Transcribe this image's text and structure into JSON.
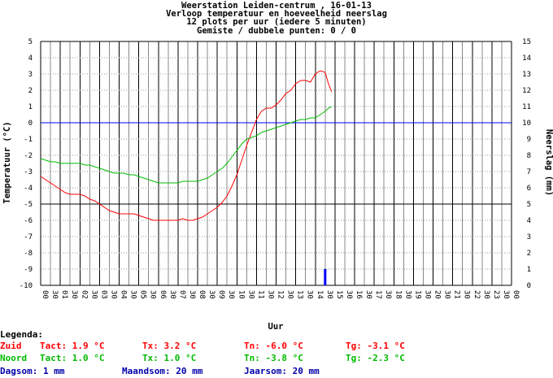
{
  "chart_data": {
    "type": "line",
    "title_lines": [
      "Weerstation Leiden-centrum , 16-01-13",
      "Verloop temperatuur en hoeveelheid neerslag",
      "12 plots per uur (iedere 5 minuten)",
      "Gemiste / dubbele punten: 0 / 0"
    ],
    "xlabel": "Uur",
    "ylabel_left": "Temperatuur (°C)",
    "ylabel_right": "Neerslag (mm)",
    "ylim_left": [
      -10,
      5
    ],
    "ylim_right": [
      0,
      15
    ],
    "xlim": [
      0,
      24
    ],
    "y_ticks_left": [
      "5",
      "4",
      "3",
      "2",
      "1",
      "0",
      "-1",
      "-2",
      "-3",
      "-4",
      "-5",
      "-6",
      "-7",
      "-8",
      "-9",
      "-10"
    ],
    "y_ticks_right": [
      "15",
      "14",
      "13",
      "12",
      "11",
      "10",
      "9",
      "8",
      "7",
      "6",
      "5",
      "4",
      "3",
      "2",
      "1",
      "0"
    ],
    "x_hour_labels": [
      "00",
      "01",
      "02",
      "03",
      "04",
      "05",
      "06",
      "07",
      "08",
      "09",
      "10",
      "11",
      "12",
      "13",
      "14",
      "15",
      "16",
      "17",
      "18",
      "19",
      "20",
      "21",
      "22",
      "23",
      "00"
    ],
    "x_half_label": "30",
    "grid": true,
    "series": [
      {
        "name": "Zuid",
        "color": "#ff0000",
        "x": [
          0.0,
          0.25,
          0.5,
          0.75,
          1.0,
          1.25,
          1.5,
          1.75,
          2.0,
          2.25,
          2.5,
          2.75,
          3.0,
          3.25,
          3.5,
          3.75,
          4.0,
          4.25,
          4.5,
          4.75,
          5.0,
          5.25,
          5.5,
          5.75,
          6.0,
          6.25,
          6.5,
          6.75,
          7.0,
          7.25,
          7.5,
          7.75,
          8.0,
          8.25,
          8.5,
          8.75,
          9.0,
          9.25,
          9.5,
          9.75,
          10.0,
          10.25,
          10.5,
          10.75,
          11.0,
          11.25,
          11.5,
          11.75,
          12.0,
          12.25,
          12.5,
          12.75,
          13.0,
          13.25,
          13.5,
          13.75,
          14.0,
          14.25,
          14.5,
          14.67,
          14.83
        ],
        "y": [
          -3.3,
          -3.5,
          -3.7,
          -3.9,
          -4.1,
          -4.3,
          -4.4,
          -4.4,
          -4.4,
          -4.5,
          -4.7,
          -4.8,
          -5.0,
          -5.2,
          -5.4,
          -5.5,
          -5.6,
          -5.6,
          -5.6,
          -5.6,
          -5.7,
          -5.8,
          -5.9,
          -6.0,
          -6.0,
          -6.0,
          -6.0,
          -6.0,
          -6.0,
          -5.9,
          -6.0,
          -6.0,
          -5.9,
          -5.8,
          -5.6,
          -5.4,
          -5.2,
          -4.9,
          -4.5,
          -3.9,
          -3.2,
          -2.3,
          -1.4,
          -0.6,
          0.2,
          0.7,
          0.9,
          0.9,
          1.1,
          1.4,
          1.8,
          2.0,
          2.4,
          2.6,
          2.6,
          2.5,
          3.0,
          3.2,
          3.1,
          2.4,
          1.9
        ]
      },
      {
        "name": "Noord",
        "color": "#00bb00",
        "x": [
          0.0,
          0.25,
          0.5,
          0.75,
          1.0,
          1.25,
          1.5,
          1.75,
          2.0,
          2.25,
          2.5,
          2.75,
          3.0,
          3.25,
          3.5,
          3.75,
          4.0,
          4.25,
          4.5,
          4.75,
          5.0,
          5.25,
          5.5,
          5.75,
          6.0,
          6.25,
          6.5,
          6.75,
          7.0,
          7.25,
          7.5,
          7.75,
          8.0,
          8.25,
          8.5,
          8.75,
          9.0,
          9.25,
          9.5,
          9.75,
          10.0,
          10.25,
          10.5,
          10.75,
          11.0,
          11.25,
          11.5,
          11.75,
          12.0,
          12.25,
          12.5,
          12.75,
          13.0,
          13.25,
          13.5,
          13.75,
          14.0,
          14.25,
          14.5,
          14.67,
          14.83
        ],
        "y": [
          -2.2,
          -2.3,
          -2.4,
          -2.4,
          -2.5,
          -2.5,
          -2.5,
          -2.5,
          -2.5,
          -2.6,
          -2.6,
          -2.7,
          -2.8,
          -2.9,
          -3.0,
          -3.1,
          -3.1,
          -3.1,
          -3.2,
          -3.2,
          -3.3,
          -3.4,
          -3.5,
          -3.6,
          -3.7,
          -3.7,
          -3.7,
          -3.7,
          -3.7,
          -3.6,
          -3.6,
          -3.6,
          -3.6,
          -3.5,
          -3.4,
          -3.2,
          -3.0,
          -2.8,
          -2.5,
          -2.1,
          -1.7,
          -1.3,
          -1.0,
          -0.9,
          -0.8,
          -0.6,
          -0.5,
          -0.4,
          -0.3,
          -0.2,
          -0.1,
          0.0,
          0.1,
          0.2,
          0.2,
          0.3,
          0.3,
          0.5,
          0.7,
          0.9,
          1.0
        ]
      }
    ],
    "rain": {
      "name": "Neerslag",
      "color": "#0000ff",
      "x": [
        14.5
      ],
      "y": [
        1.0
      ]
    },
    "zero_line_color": "#0000ff"
  },
  "legend": {
    "heading": "Legenda:",
    "rows": [
      {
        "color": "#ff0000",
        "station": "Zuid",
        "tact": "Tact: 1.9 °C",
        "tx": "Tx: 3.2 °C",
        "tn": "Tn: -6.0 °C",
        "tg": "Tg: -3.1 °C"
      },
      {
        "color": "#00bb00",
        "station": "Noord",
        "tact": "Tact: 1.0 °C",
        "tx": "Tx: 1.0 °C",
        "tn": "Tn: -3.8 °C",
        "tg": "Tg: -2.3 °C"
      }
    ],
    "rain_row": {
      "color": "#0000aa",
      "dagsom": "Dagsom: 1 mm",
      "maandsom": "Maandsom: 20 mm",
      "jaarsom": "Jaarsom: 20 mm"
    }
  }
}
